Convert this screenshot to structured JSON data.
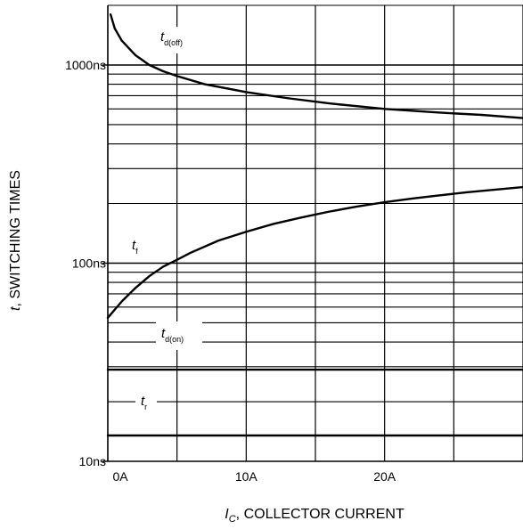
{
  "chart_data": {
    "type": "line",
    "title": "",
    "xlabel_var": "I",
    "xlabel_sub": "C",
    "xlabel_rest": ", COLLECTOR CURRENT",
    "ylabel_var": "t",
    "ylabel_rest": ", SWITCHING TIMES",
    "x_scale": "linear",
    "y_scale": "log",
    "xlim": [
      0,
      30
    ],
    "ylim": [
      10,
      2000
    ],
    "grid": true,
    "x_ticks": [
      {
        "value": 0,
        "label": "0A"
      },
      {
        "value": 10,
        "label": "10A"
      },
      {
        "value": 20,
        "label": "20A"
      }
    ],
    "y_ticks": [
      {
        "value": 10,
        "label": "10ns"
      },
      {
        "value": 100,
        "label": "100ns"
      },
      {
        "value": 1000,
        "label": "1000ns"
      }
    ],
    "series": [
      {
        "name_var": "t",
        "name_sub": "d(off)",
        "x": [
          0.2,
          0.5,
          1,
          2,
          3,
          4,
          5,
          7,
          10,
          13,
          16,
          20,
          24,
          27,
          30
        ],
        "y": [
          1800,
          1530,
          1330,
          1120,
          1000,
          930,
          880,
          800,
          730,
          680,
          640,
          600,
          575,
          560,
          540
        ]
      },
      {
        "name_var": "t",
        "name_sub": "f",
        "x": [
          0,
          1,
          2,
          3,
          4,
          5,
          6,
          8,
          10,
          12,
          14,
          16,
          18,
          20,
          22,
          24,
          26,
          28,
          30
        ],
        "y": [
          53,
          64,
          75,
          86,
          96,
          104,
          113,
          130,
          144,
          158,
          170,
          182,
          193,
          203,
          212,
          220,
          228,
          235,
          242
        ]
      },
      {
        "name_var": "t",
        "name_sub": "d(on)",
        "x": [
          0,
          30
        ],
        "y": [
          29,
          29
        ]
      },
      {
        "name_var": "t",
        "name_sub": "r",
        "x": [
          0,
          30
        ],
        "y": [
          13.5,
          13.5
        ]
      }
    ]
  }
}
